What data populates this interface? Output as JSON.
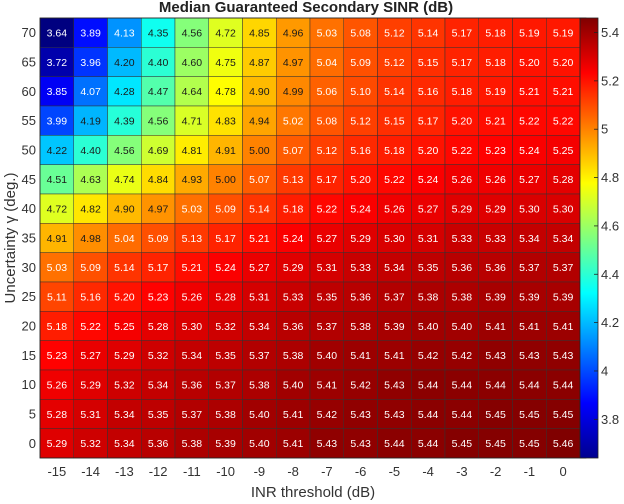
{
  "chart_data": {
    "type": "heatmap",
    "title": "Median Guaranteed Secondary SINR (dB)",
    "xlabel": "INR threshold (dB)",
    "ylabel": "Uncertainty γ (deg.)",
    "x_categories": [
      "-15",
      "-14",
      "-13",
      "-12",
      "-11",
      "-10",
      "-9",
      "-8",
      "-7",
      "-6",
      "-5",
      "-4",
      "-3",
      "-2",
      "-1",
      "0"
    ],
    "y_categories": [
      "70",
      "65",
      "60",
      "55",
      "50",
      "45",
      "40",
      "35",
      "30",
      "25",
      "20",
      "15",
      "10",
      "5",
      "0"
    ],
    "values": [
      [
        "3.64",
        "3.89",
        "4.13",
        "4.35",
        "4.56",
        "4.72",
        "4.85",
        "4.96",
        "5.03",
        "5.08",
        "5.12",
        "5.14",
        "5.17",
        "5.18",
        "5.19",
        "5.19"
      ],
      [
        "3.72",
        "3.96",
        "4.20",
        "4.40",
        "4.60",
        "4.75",
        "4.87",
        "4.97",
        "5.04",
        "5.09",
        "5.12",
        "5.15",
        "5.17",
        "5.18",
        "5.20",
        "5.20"
      ],
      [
        "3.85",
        "4.07",
        "4.28",
        "4.47",
        "4.64",
        "4.78",
        "4.90",
        "4.99",
        "5.06",
        "5.10",
        "5.14",
        "5.16",
        "5.18",
        "5.19",
        "5.21",
        "5.21"
      ],
      [
        "3.99",
        "4.19",
        "4.39",
        "4.56",
        "4.71",
        "4.83",
        "4.94",
        "5.02",
        "5.08",
        "5.12",
        "5.15",
        "5.17",
        "5.20",
        "5.21",
        "5.22",
        "5.22"
      ],
      [
        "4.22",
        "4.40",
        "4.56",
        "4.69",
        "4.81",
        "4.91",
        "5.00",
        "5.07",
        "5.12",
        "5.16",
        "5.18",
        "5.20",
        "5.22",
        "5.23",
        "5.24",
        "5.25"
      ],
      [
        "4.51",
        "4.63",
        "4.74",
        "4.84",
        "4.93",
        "5.00",
        "5.07",
        "5.13",
        "5.17",
        "5.20",
        "5.22",
        "5.24",
        "5.26",
        "5.26",
        "5.27",
        "5.28"
      ],
      [
        "4.72",
        "4.82",
        "4.90",
        "4.97",
        "5.03",
        "5.09",
        "5.14",
        "5.18",
        "5.22",
        "5.24",
        "5.26",
        "5.27",
        "5.29",
        "5.29",
        "5.30",
        "5.30"
      ],
      [
        "4.91",
        "4.98",
        "5.04",
        "5.09",
        "5.13",
        "5.17",
        "5.21",
        "5.24",
        "5.27",
        "5.29",
        "5.30",
        "5.31",
        "5.33",
        "5.33",
        "5.34",
        "5.34"
      ],
      [
        "5.03",
        "5.09",
        "5.14",
        "5.17",
        "5.21",
        "5.24",
        "5.27",
        "5.29",
        "5.31",
        "5.33",
        "5.34",
        "5.35",
        "5.36",
        "5.36",
        "5.37",
        "5.37"
      ],
      [
        "5.11",
        "5.16",
        "5.20",
        "5.23",
        "5.26",
        "5.28",
        "5.31",
        "5.33",
        "5.35",
        "5.36",
        "5.37",
        "5.38",
        "5.38",
        "5.39",
        "5.39",
        "5.39"
      ],
      [
        "5.18",
        "5.22",
        "5.25",
        "5.28",
        "5.30",
        "5.32",
        "5.34",
        "5.36",
        "5.37",
        "5.38",
        "5.39",
        "5.40",
        "5.40",
        "5.41",
        "5.41",
        "5.41"
      ],
      [
        "5.23",
        "5.27",
        "5.29",
        "5.32",
        "5.34",
        "5.35",
        "5.37",
        "5.38",
        "5.40",
        "5.41",
        "5.41",
        "5.42",
        "5.42",
        "5.43",
        "5.43",
        "5.43"
      ],
      [
        "5.26",
        "5.29",
        "5.32",
        "5.34",
        "5.36",
        "5.37",
        "5.38",
        "5.40",
        "5.41",
        "5.42",
        "5.43",
        "5.44",
        "5.44",
        "5.44",
        "5.44",
        "5.44"
      ],
      [
        "5.28",
        "5.31",
        "5.34",
        "5.35",
        "5.37",
        "5.38",
        "5.40",
        "5.41",
        "5.42",
        "5.43",
        "5.43",
        "5.44",
        "5.44",
        "5.45",
        "5.45",
        "5.45"
      ],
      [
        "5.29",
        "5.32",
        "5.34",
        "5.36",
        "5.38",
        "5.39",
        "5.40",
        "5.41",
        "5.43",
        "5.43",
        "5.44",
        "5.44",
        "5.45",
        "5.45",
        "5.45",
        "5.46"
      ]
    ],
    "colorbar": {
      "colormap": "jet",
      "range": [
        3.64,
        5.46
      ],
      "ticks": [
        "3.8",
        "4",
        "4.2",
        "4.4",
        "4.6",
        "4.8",
        "5",
        "5.2",
        "5.4"
      ]
    },
    "grid": true
  }
}
